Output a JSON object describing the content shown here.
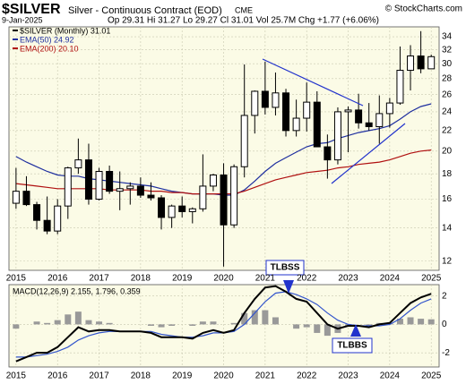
{
  "chart_data": [
    {
      "type": "candlestick",
      "title": "$SILVER",
      "subtitle": "Silver - Continuous Contract (EOD)",
      "exchange": "CME",
      "credit": "© StockCharts.com",
      "date": "9-Jan-2025",
      "quote": "Op 29.31  Hi 31.27  Lo 29.27  Cl 31.01  Vol 25.7M  Chg +1.77 (+6.06%)",
      "name": "$SILVER (Monthly) 31.01",
      "color": "#000000",
      "x": [
        2015,
        2015.25,
        2015.5,
        2015.75,
        2016,
        2016.25,
        2016.5,
        2016.75,
        2017,
        2017.25,
        2017.5,
        2017.75,
        2018,
        2018.25,
        2018.5,
        2018.75,
        2019,
        2019.25,
        2019.5,
        2019.75,
        2020,
        2020.25,
        2020.5,
        2020.75,
        2021,
        2021.25,
        2021.5,
        2021.75,
        2022,
        2022.25,
        2022.5,
        2022.75,
        2023,
        2023.25,
        2023.5,
        2023.75,
        2024,
        2024.25,
        2024.5,
        2024.75,
        2025
      ],
      "open": [
        15.7,
        16.6,
        15.6,
        14.5,
        13.8,
        15.5,
        18.5,
        19.2,
        16.0,
        18.2,
        16.6,
        16.8,
        17.0,
        16.3,
        16.1,
        14.7,
        15.5,
        15.1,
        15.3,
        17.0,
        17.9,
        14.2,
        18.6,
        23.6,
        26.4,
        24.5,
        26.2,
        22.0,
        23.3,
        25.1,
        20.4,
        19.2,
        24.0,
        24.2,
        22.8,
        22.4,
        23.8,
        25.0,
        29.1,
        31.1,
        29.3
      ],
      "high": [
        18.5,
        17.8,
        15.8,
        16.2,
        16.0,
        18.6,
        21.2,
        20.7,
        18.5,
        18.7,
        18.2,
        17.3,
        17.7,
        17.3,
        16.3,
        15.6,
        16.2,
        15.4,
        19.7,
        18.0,
        18.9,
        18.8,
        29.9,
        26.5,
        30.3,
        28.8,
        26.7,
        25.4,
        27.5,
        26.4,
        21.6,
        24.5,
        24.6,
        26.1,
        25.0,
        25.9,
        25.6,
        32.5,
        32.7,
        34.9,
        31.3
      ],
      "low": [
        15.3,
        15.5,
        13.9,
        13.6,
        13.6,
        14.6,
        18.0,
        15.6,
        15.9,
        16.4,
        15.2,
        15.6,
        16.1,
        15.9,
        13.9,
        14.0,
        14.7,
        14.3,
        15.1,
        16.6,
        11.7,
        14.0,
        17.7,
        21.7,
        23.7,
        23.6,
        21.4,
        21.4,
        21.9,
        20.4,
        17.6,
        18.8,
        19.9,
        22.2,
        22.0,
        20.7,
        22.3,
        24.8,
        26.5,
        28.7,
        29.3
      ],
      "close": [
        16.6,
        15.6,
        14.5,
        13.8,
        15.5,
        18.5,
        19.2,
        16.0,
        18.2,
        16.6,
        16.8,
        17.0,
        16.3,
        16.1,
        14.7,
        15.5,
        15.1,
        15.3,
        17.0,
        17.9,
        14.2,
        18.6,
        23.6,
        26.4,
        24.5,
        26.2,
        22.0,
        23.3,
        25.1,
        20.4,
        19.2,
        24.0,
        24.2,
        22.8,
        22.4,
        23.8,
        25.0,
        29.1,
        31.1,
        29.3,
        31.0
      ],
      "series": [
        {
          "name": "EMA(50) 24.92",
          "color": "#1f2f9f",
          "values": [
            19.5,
            19.0,
            18.6,
            18.2,
            17.9,
            17.8,
            17.8,
            17.6,
            17.5,
            17.4,
            17.3,
            17.2,
            17.1,
            17.0,
            16.8,
            16.6,
            16.5,
            16.4,
            16.4,
            16.4,
            16.3,
            16.3,
            16.7,
            17.4,
            18.2,
            18.9,
            19.4,
            19.9,
            20.4,
            20.7,
            20.8,
            21.2,
            21.5,
            21.8,
            22.0,
            22.2,
            22.5,
            23.2,
            24.0,
            24.6,
            24.9
          ]
        },
        {
          "name": "EMA(200) 20.10",
          "color": "#b01010",
          "values": [
            17.2,
            17.1,
            17.0,
            16.9,
            16.8,
            16.8,
            16.8,
            16.8,
            16.8,
            16.7,
            16.7,
            16.7,
            16.7,
            16.6,
            16.6,
            16.5,
            16.5,
            16.4,
            16.4,
            16.4,
            16.4,
            16.4,
            16.6,
            16.9,
            17.2,
            17.5,
            17.7,
            17.9,
            18.1,
            18.2,
            18.3,
            18.5,
            18.6,
            18.8,
            18.9,
            19.0,
            19.2,
            19.5,
            19.8,
            20.0,
            20.1
          ]
        }
      ],
      "xlim": [
        2014.83,
        2025.19
      ],
      "xticks": [
        2015,
        2016,
        2017,
        2018,
        2019,
        2020,
        2021,
        2022,
        2023,
        2024,
        2025
      ],
      "ylim": [
        11.5,
        35.6
      ],
      "yticks": [
        12,
        14,
        16,
        18,
        20,
        22,
        24,
        26,
        28,
        30,
        32,
        34
      ],
      "log_scale": true,
      "grid": true
    },
    {
      "type": "macd",
      "title": "MACD(12,26,9) 2.155, 1.796, 0.359",
      "annotations": [
        "TLBSS",
        "TLBBS"
      ],
      "x": [
        2015,
        2015.25,
        2015.5,
        2015.75,
        2016,
        2016.25,
        2016.5,
        2016.75,
        2017,
        2017.25,
        2017.5,
        2017.75,
        2018,
        2018.25,
        2018.5,
        2018.75,
        2019,
        2019.25,
        2019.5,
        2019.75,
        2020,
        2020.25,
        2020.5,
        2020.75,
        2021,
        2021.25,
        2021.5,
        2021.75,
        2022,
        2022.25,
        2022.5,
        2022.75,
        2023,
        2023.25,
        2023.5,
        2023.75,
        2024,
        2024.25,
        2024.5,
        2024.75,
        2025
      ],
      "series": [
        {
          "color": "#999999",
          "kind": "histogram",
          "values": [
            -0.3,
            0.0,
            0.2,
            0.1,
            0.3,
            0.7,
            0.9,
            0.3,
            0.2,
            0.1,
            0.0,
            0.0,
            0.0,
            -0.1,
            -0.2,
            -0.1,
            0.0,
            -0.1,
            0.2,
            0.2,
            0.0,
            0.1,
            0.8,
            1.0,
            1.0,
            0.5,
            0.0,
            -0.3,
            -0.2,
            -0.6,
            -0.8,
            -0.6,
            -0.1,
            0.0,
            -0.1,
            0.1,
            0.1,
            0.4,
            0.5,
            0.4,
            0.359
          ]
        },
        {
          "color": "#3355cc",
          "kind": "line",
          "values": [
            -2.3,
            -2.3,
            -2.2,
            -2.1,
            -1.9,
            -1.6,
            -1.1,
            -0.8,
            -0.6,
            -0.5,
            -0.5,
            -0.5,
            -0.5,
            -0.5,
            -0.7,
            -0.8,
            -0.9,
            -0.9,
            -0.8,
            -0.6,
            -0.6,
            -0.5,
            0.0,
            0.8,
            1.6,
            2.2,
            2.3,
            2.1,
            1.8,
            1.4,
            0.8,
            0.3,
            0.0,
            -0.1,
            -0.1,
            -0.1,
            0.0,
            0.4,
            1.0,
            1.5,
            1.796
          ]
        },
        {
          "color": "#000000",
          "kind": "line",
          "values": [
            -2.6,
            -2.3,
            -2.0,
            -2.0,
            -1.6,
            -0.9,
            -0.2,
            -0.5,
            -0.4,
            -0.4,
            -0.5,
            -0.5,
            -0.5,
            -0.6,
            -0.9,
            -0.9,
            -0.9,
            -1.0,
            -0.6,
            -0.4,
            -0.6,
            -0.4,
            0.8,
            1.8,
            2.6,
            2.7,
            2.3,
            1.8,
            1.6,
            0.8,
            0.0,
            -0.3,
            -0.1,
            -0.1,
            -0.2,
            0.0,
            0.1,
            0.8,
            1.5,
            1.9,
            2.155
          ]
        }
      ],
      "xlim": [
        2014.83,
        2025.19
      ],
      "xticks": [
        2015,
        2016,
        2017,
        2018,
        2019,
        2020,
        2021,
        2022,
        2023,
        2024,
        2025
      ],
      "ylim": [
        -3,
        2.8
      ],
      "yticks": [
        -2,
        0,
        2
      ],
      "grid": true
    }
  ]
}
